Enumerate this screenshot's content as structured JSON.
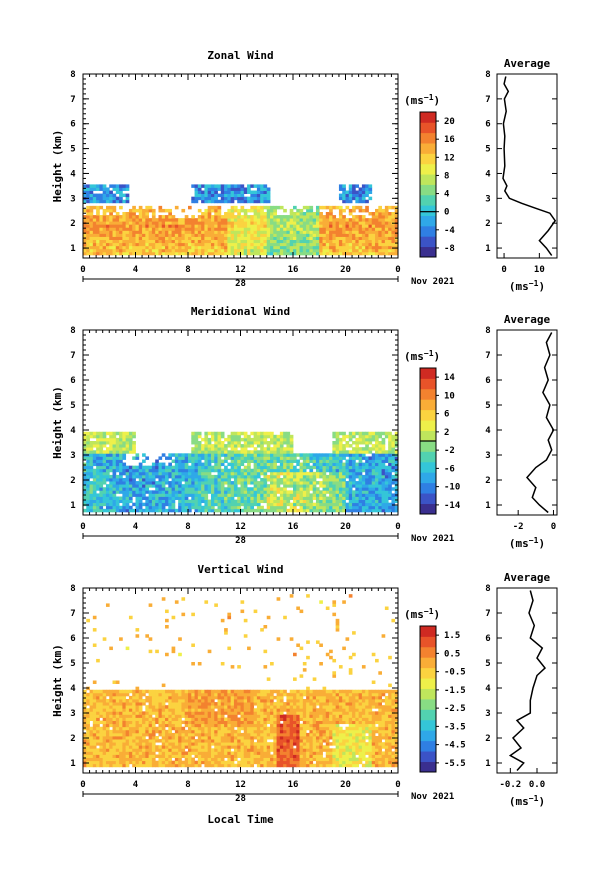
{
  "date_label": "Nov 2021",
  "day_label": "28",
  "xlabel": "Local Time",
  "ylabel": "Height (km)",
  "unit": "(ms",
  "unit_sup": "−1",
  "unit_close": ")",
  "avg_title": "Average",
  "colors": [
    "#3a2f8f",
    "#3b53c6",
    "#2f7fe3",
    "#2fa8e8",
    "#34c6d8",
    "#52d2b0",
    "#88dc84",
    "#bfe65c",
    "#eef04a",
    "#fbd340",
    "#f9ad37",
    "#f3822f",
    "#e85329",
    "#cf2a22"
  ],
  "chart_data": [
    {
      "type": "heatmap",
      "title": "Zonal Wind",
      "x_ticks": [
        "0",
        "4",
        "8",
        "12",
        "16",
        "20",
        "0"
      ],
      "x_range": [
        0,
        24
      ],
      "y_ticks": [
        "1",
        "2",
        "3",
        "4",
        "5",
        "6",
        "7",
        "8"
      ],
      "y_range": [
        0.6,
        8
      ],
      "colorbar_ticks": [
        "20",
        "16",
        "12",
        "8",
        "4",
        "0",
        "-4",
        "-8"
      ],
      "colorbar_range": [
        -10,
        22
      ],
      "contour_value": 0,
      "avg_x_ticks": [
        "0",
        "10"
      ],
      "avg_x_range": [
        -2,
        15
      ],
      "avg_profile": [
        [
          13.5,
          0.7
        ],
        [
          12,
          1.0
        ],
        [
          10,
          1.3
        ],
        [
          12.5,
          1.7
        ],
        [
          14.5,
          2.1
        ],
        [
          13,
          2.4
        ],
        [
          9,
          2.6
        ],
        [
          5,
          2.8
        ],
        [
          1.5,
          3.0
        ],
        [
          0.2,
          3.3
        ],
        [
          0.8,
          3.5
        ],
        [
          -0.3,
          3.8
        ],
        [
          0.2,
          4.3
        ],
        [
          0,
          5
        ],
        [
          0.2,
          5.5
        ],
        [
          -0.2,
          6
        ],
        [
          0.6,
          6.5
        ],
        [
          0.1,
          7
        ],
        [
          1.2,
          7.3
        ],
        [
          0,
          7.6
        ],
        [
          0.5,
          7.9
        ]
      ]
    },
    {
      "type": "heatmap",
      "title": "Meridional Wind",
      "x_ticks": [
        "0",
        "4",
        "8",
        "12",
        "16",
        "20",
        "0"
      ],
      "x_range": [
        0,
        24
      ],
      "y_ticks": [
        "1",
        "2",
        "3",
        "4",
        "5",
        "6",
        "7",
        "8"
      ],
      "y_range": [
        0.6,
        8
      ],
      "colorbar_ticks": [
        "14",
        "10",
        "6",
        "2",
        "-2",
        "-6",
        "-10",
        "-14"
      ],
      "colorbar_range": [
        -16,
        16
      ],
      "contour_value": 0,
      "avg_x_ticks": [
        "-2",
        "0"
      ],
      "avg_x_range": [
        -3.2,
        0.2
      ],
      "avg_profile": [
        [
          -0.3,
          0.7
        ],
        [
          -0.8,
          1.0
        ],
        [
          -1.2,
          1.3
        ],
        [
          -1.0,
          1.7
        ],
        [
          -1.5,
          2.1
        ],
        [
          -1.0,
          2.5
        ],
        [
          -0.4,
          2.8
        ],
        [
          -0.1,
          3.2
        ],
        [
          -0.3,
          3.6
        ],
        [
          0,
          4.0
        ],
        [
          -0.4,
          4.5
        ],
        [
          -0.2,
          5.0
        ],
        [
          -0.6,
          5.5
        ],
        [
          -0.3,
          6.0
        ],
        [
          -0.5,
          6.5
        ],
        [
          -0.2,
          7.0
        ],
        [
          -0.4,
          7.5
        ],
        [
          -0.1,
          7.9
        ]
      ]
    },
    {
      "type": "heatmap",
      "title": "Vertical Wind",
      "x_ticks": [
        "0",
        "4",
        "8",
        "12",
        "16",
        "20",
        "0"
      ],
      "x_range": [
        0,
        24
      ],
      "y_ticks": [
        "1",
        "2",
        "3",
        "4",
        "5",
        "6",
        "7",
        "8"
      ],
      "y_range": [
        0.6,
        8
      ],
      "colorbar_ticks": [
        "1.5",
        "0.5",
        "-0.5",
        "-1.5",
        "-2.5",
        "-3.5",
        "-4.5",
        "-5.5"
      ],
      "colorbar_range": [
        -6,
        2
      ],
      "avg_x_ticks": [
        "-0.2",
        "0.0"
      ],
      "avg_x_range": [
        -0.3,
        0.15
      ],
      "avg_profile": [
        [
          -0.15,
          0.7
        ],
        [
          -0.1,
          1.0
        ],
        [
          -0.2,
          1.3
        ],
        [
          -0.12,
          1.6
        ],
        [
          -0.18,
          2.0
        ],
        [
          -0.1,
          2.4
        ],
        [
          -0.15,
          2.7
        ],
        [
          -0.05,
          3.0
        ],
        [
          -0.05,
          3.5
        ],
        [
          -0.03,
          4.0
        ],
        [
          0.0,
          4.5
        ],
        [
          0.06,
          4.8
        ],
        [
          0.0,
          5.2
        ],
        [
          0.04,
          5.6
        ],
        [
          -0.05,
          6.0
        ],
        [
          -0.02,
          6.5
        ],
        [
          -0.06,
          7.0
        ],
        [
          -0.03,
          7.5
        ],
        [
          -0.05,
          7.9
        ]
      ]
    }
  ]
}
